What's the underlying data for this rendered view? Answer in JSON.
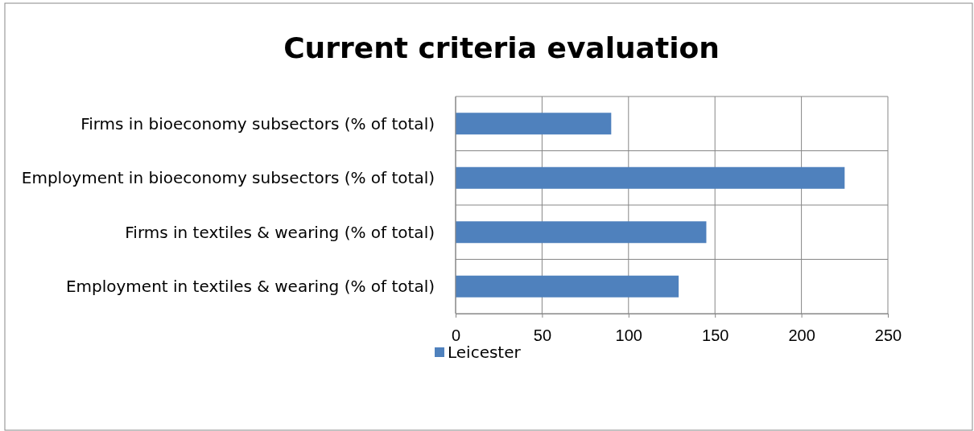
{
  "chart_data": {
    "type": "bar",
    "orientation": "horizontal",
    "title": "Current criteria evaluation",
    "categories": [
      "Firms in bioeconomy subsectors (% of total)",
      "Employment in bioeconomy subsectors (% of total)",
      "Firms in textiles & wearing (% of total)",
      "Employment in textiles & wearing (% of total)"
    ],
    "series": [
      {
        "name": "Leicester",
        "color": "#4f81bd",
        "values": [
          90,
          225,
          145,
          129
        ]
      }
    ],
    "xlim": [
      0,
      250
    ],
    "xticks": [
      0,
      50,
      100,
      150,
      200,
      250
    ],
    "grid": true,
    "legend": "bottom"
  }
}
